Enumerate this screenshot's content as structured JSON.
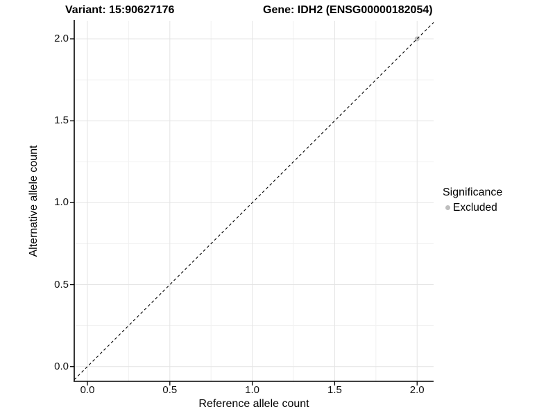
{
  "chart_data": {
    "type": "scatter",
    "title_left": "Variant: 15:90627176",
    "title_right": "Gene: IDH2 (ENSG00000182054)",
    "xlabel": "Reference allele count",
    "ylabel": "Alternative allele count",
    "xlim": [
      -0.08,
      2.1
    ],
    "ylim": [
      -0.09,
      2.11
    ],
    "x_ticks": [
      0.0,
      0.5,
      1.0,
      1.5,
      2.0
    ],
    "x_tick_labels": [
      "0.0",
      "0.5",
      "1.0",
      "1.5",
      "2.0"
    ],
    "y_ticks": [
      0.0,
      0.5,
      1.0,
      1.5,
      2.0
    ],
    "y_tick_labels": [
      "0.0",
      "0.5",
      "1.0",
      "1.5",
      "2.0"
    ],
    "x_minor_ticks": [
      0.25,
      0.75,
      1.25,
      1.75
    ],
    "y_minor_ticks": [
      0.25,
      0.75,
      1.25,
      1.75
    ],
    "grid": {
      "major_color": "#e4e4e4",
      "minor_color": "#f1f1f1",
      "grid_on": true
    },
    "axis_line_color": "#000000",
    "identity_line": {
      "slope": 1,
      "intercept": 0,
      "style": "dashed",
      "color": "#000000"
    },
    "point_color": "#bebebe",
    "point_radius": 3.5,
    "points": [
      {
        "x": 2.0,
        "y": 2.0,
        "series": "Excluded"
      }
    ],
    "legend": {
      "title": "Significance",
      "position": "right",
      "entries": [
        {
          "label": "Excluded",
          "color": "#bebebe"
        }
      ]
    }
  }
}
